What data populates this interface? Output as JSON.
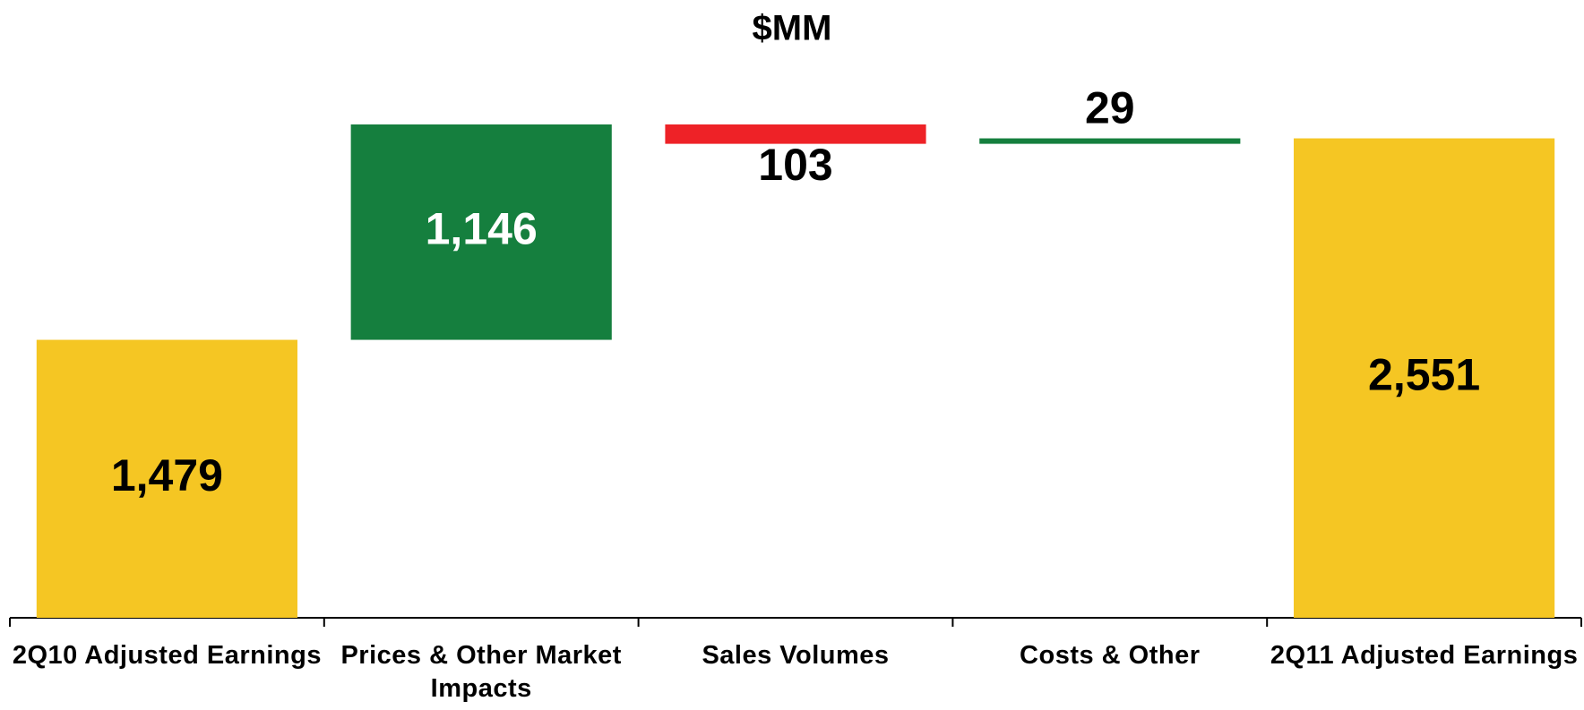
{
  "chart_data": {
    "type": "waterfall",
    "title": "$MM",
    "categories": [
      "2Q10 Adjusted Earnings",
      "Prices & Other Market Impacts",
      "Sales Volumes",
      "Costs & Other",
      "2Q11 Adjusted Earnings"
    ],
    "values": [
      1479,
      1146,
      -103,
      29,
      2551
    ],
    "value_labels": [
      "1,479",
      "1,146",
      "103",
      "29",
      "2,551"
    ],
    "colors": [
      "#f5c623",
      "#157f3e",
      "#ee2227",
      "#157f3e",
      "#f5c623"
    ]
  }
}
